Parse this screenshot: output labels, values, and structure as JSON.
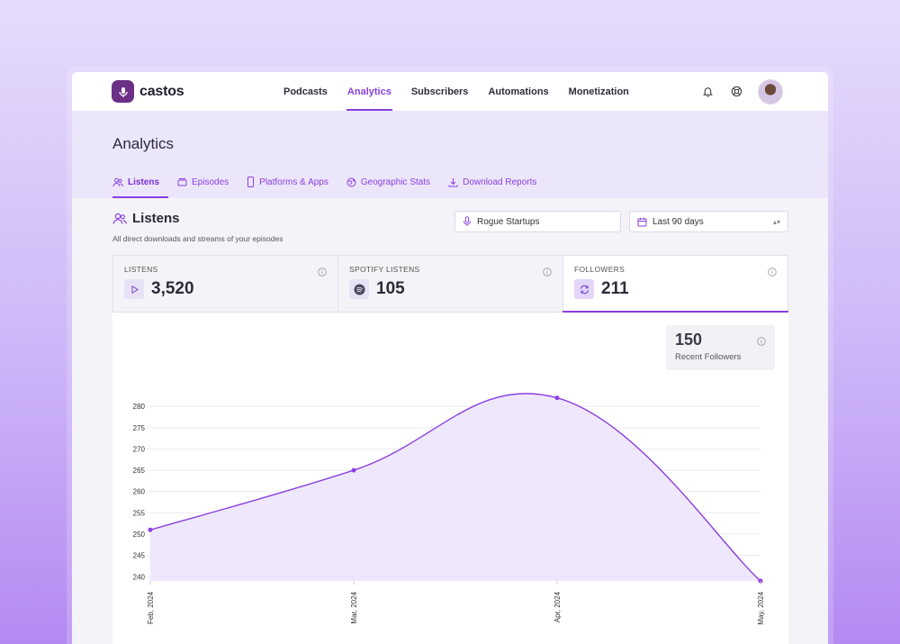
{
  "app": {
    "name": "castos"
  },
  "nav": {
    "links": [
      {
        "label": "Podcasts"
      },
      {
        "label": "Analytics"
      },
      {
        "label": "Subscribers"
      },
      {
        "label": "Automations"
      },
      {
        "label": "Monetization"
      }
    ],
    "active": "Analytics"
  },
  "page": {
    "title": "Analytics"
  },
  "tabs": [
    {
      "label": "Listens",
      "icon": "users-icon"
    },
    {
      "label": "Episodes",
      "icon": "episodes-icon"
    },
    {
      "label": "Platforms & Apps",
      "icon": "phone-icon"
    },
    {
      "label": "Geographic Stats",
      "icon": "globe-icon"
    },
    {
      "label": "Download Reports",
      "icon": "download-icon"
    }
  ],
  "section": {
    "title": "Listens",
    "subtitle": "All direct downloads and streams of your episodes"
  },
  "filters": {
    "podcast": "Rogue Startups",
    "range": "Last 90 days"
  },
  "stats": [
    {
      "label": "LISTENS",
      "value": "3,520",
      "icon": "play-icon"
    },
    {
      "label": "SPOTIFY LISTENS",
      "value": "105",
      "icon": "spotify-icon"
    },
    {
      "label": "FOLLOWERS",
      "value": "211",
      "icon": "refresh-icon"
    }
  ],
  "recent": {
    "value": "150",
    "label": "Recent Followers"
  },
  "colors": {
    "accent": "#8a3fe0",
    "area": "#ece4fb"
  },
  "chart_data": {
    "type": "area",
    "categories": [
      "Feb, 2024",
      "Mar, 2024",
      "Apr, 2024",
      "May, 2024"
    ],
    "values": [
      251,
      265,
      282,
      239
    ],
    "ylim": [
      239,
      283
    ],
    "yticks": [
      240,
      245,
      250,
      255,
      260,
      265,
      270,
      275,
      280
    ],
    "grid": true
  }
}
